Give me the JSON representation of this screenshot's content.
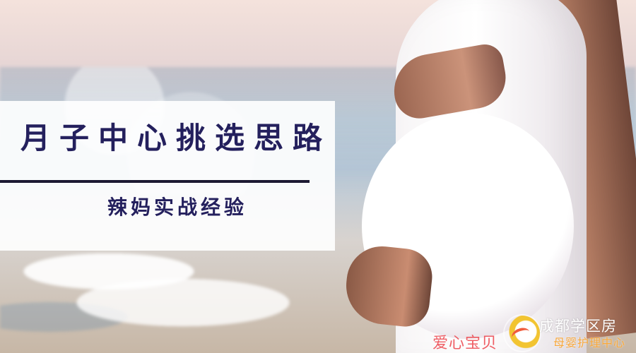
{
  "title_card": {
    "title": "月子中心挑选思路",
    "subtitle": "辣妈实战经验"
  },
  "watermark": {
    "left_text": "爱心宝贝",
    "brand_name": "成都学区房",
    "brand_sub": "母婴护理中心"
  },
  "colors": {
    "title_text": "#24205d",
    "divider": "#1d1a32",
    "watermark_red": "#ee4e55",
    "brand_orange": "#f8a83b"
  }
}
